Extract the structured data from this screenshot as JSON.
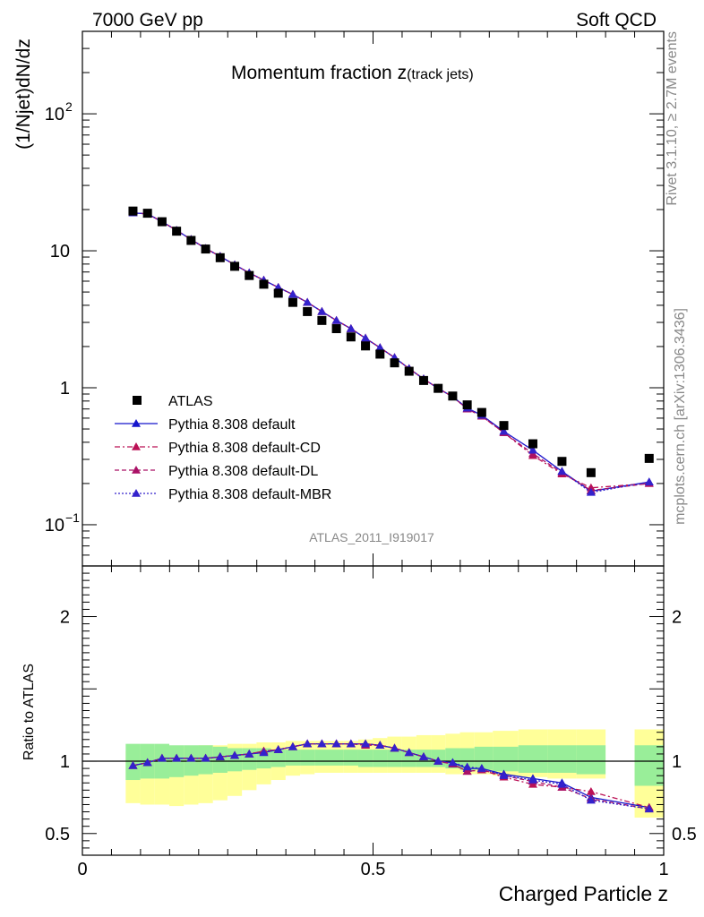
{
  "header": {
    "left": "7000 GeV pp",
    "right": "Soft QCD"
  },
  "side_labels": {
    "rivet": "Rivet 3.1.10, ≥ 2.7M events",
    "mcplots": "mcplots.cern.ch [arXiv:1306.3436]"
  },
  "watermark": "ATLAS_2011_I919017",
  "chart_data": {
    "type": "scatter",
    "title_main": "Momentum fraction z",
    "title_sub": "(track jets)",
    "ylabel": "(1/Njet)dN/dz",
    "ratio_ylabel": "Ratio to ATLAS",
    "xlabel": "Charged Particle z",
    "x_range": [
      0,
      1
    ],
    "y_range_log": [
      0.05,
      400
    ],
    "ratio_range": [
      0.35,
      2.35
    ],
    "x_ticks": [
      {
        "value": 0,
        "label": "0"
      },
      {
        "value": 0.5,
        "label": "0.5"
      },
      {
        "value": 1,
        "label": "1"
      }
    ],
    "y_ticks": [
      {
        "value": 0.1,
        "base": "10",
        "exp": "−1"
      },
      {
        "value": 1,
        "base": "1",
        "exp": ""
      },
      {
        "value": 10,
        "base": "10",
        "exp": ""
      },
      {
        "value": 100,
        "base": "10",
        "exp": "2"
      }
    ],
    "ratio_ticks": [
      {
        "value": 0.5,
        "label": "0.5"
      },
      {
        "value": 1,
        "label": "1"
      },
      {
        "value": 2,
        "label": "2"
      }
    ],
    "x": [
      0.087,
      0.112,
      0.137,
      0.162,
      0.187,
      0.212,
      0.237,
      0.262,
      0.287,
      0.312,
      0.337,
      0.362,
      0.387,
      0.412,
      0.437,
      0.462,
      0.487,
      0.512,
      0.537,
      0.562,
      0.587,
      0.612,
      0.637,
      0.662,
      0.687,
      0.725,
      0.775,
      0.825,
      0.875,
      0.975
    ],
    "data": {
      "name": "ATLAS",
      "values": [
        19.5,
        18.8,
        16.3,
        13.9,
        11.9,
        10.3,
        8.9,
        7.7,
        6.6,
        5.7,
        4.9,
        4.2,
        3.6,
        3.1,
        2.7,
        2.35,
        2.02,
        1.76,
        1.52,
        1.32,
        1.13,
        0.99,
        0.87,
        0.75,
        0.66,
        0.53,
        0.39,
        0.29,
        0.24,
        0.305
      ],
      "band_inner": [
        [
          0.87,
          1.12
        ],
        [
          0.88,
          1.12
        ],
        [
          0.88,
          1.12
        ],
        [
          0.89,
          1.11
        ],
        [
          0.9,
          1.11
        ],
        [
          0.91,
          1.11
        ],
        [
          0.92,
          1.1
        ],
        [
          0.93,
          1.09
        ],
        [
          0.94,
          1.09
        ],
        [
          0.95,
          1.09
        ],
        [
          0.96,
          1.08
        ],
        [
          0.97,
          1.08
        ],
        [
          0.97,
          1.08
        ],
        [
          0.97,
          1.08
        ],
        [
          0.97,
          1.08
        ],
        [
          0.97,
          1.08
        ],
        [
          0.96,
          1.08
        ],
        [
          0.96,
          1.08
        ],
        [
          0.96,
          1.08
        ],
        [
          0.96,
          1.08
        ],
        [
          0.96,
          1.08
        ],
        [
          0.96,
          1.08
        ],
        [
          0.95,
          1.09
        ],
        [
          0.94,
          1.09
        ],
        [
          0.94,
          1.1
        ],
        [
          0.93,
          1.1
        ],
        [
          0.92,
          1.11
        ],
        [
          0.92,
          1.11
        ],
        [
          0.91,
          1.11
        ],
        [
          0.83,
          1.11
        ]
      ],
      "band_outer": [
        [
          0.71,
          1.07
        ],
        [
          0.7,
          1.08
        ],
        [
          0.7,
          1.09
        ],
        [
          0.69,
          1.1
        ],
        [
          0.7,
          1.1
        ],
        [
          0.71,
          1.11
        ],
        [
          0.73,
          1.11
        ],
        [
          0.76,
          1.12
        ],
        [
          0.8,
          1.12
        ],
        [
          0.84,
          1.13
        ],
        [
          0.87,
          1.13
        ],
        [
          0.9,
          1.14
        ],
        [
          0.91,
          1.14
        ],
        [
          0.92,
          1.14
        ],
        [
          0.92,
          1.14
        ],
        [
          0.92,
          1.14
        ],
        [
          0.92,
          1.15
        ],
        [
          0.92,
          1.16
        ],
        [
          0.92,
          1.17
        ],
        [
          0.92,
          1.17
        ],
        [
          0.92,
          1.18
        ],
        [
          0.92,
          1.18
        ],
        [
          0.91,
          1.19
        ],
        [
          0.91,
          1.2
        ],
        [
          0.91,
          1.2
        ],
        [
          0.9,
          1.21
        ],
        [
          0.89,
          1.22
        ],
        [
          0.88,
          1.22
        ],
        [
          0.88,
          1.22
        ],
        [
          0.61,
          1.22
        ]
      ]
    },
    "series": [
      {
        "name": "Pythia 8.308 default",
        "color": "#1515cc",
        "dash": "",
        "values": [
          18.9,
          18.6,
          16.3,
          14.1,
          12.1,
          10.4,
          9.1,
          7.9,
          6.9,
          6.1,
          5.4,
          4.8,
          4.2,
          3.6,
          3.1,
          2.7,
          2.3,
          1.96,
          1.66,
          1.38,
          1.16,
          0.99,
          0.86,
          0.71,
          0.63,
          0.48,
          0.35,
          0.245,
          0.176,
          0.205
        ],
        "ratio": [
          0.97,
          0.99,
          1.02,
          1.02,
          1.02,
          1.02,
          1.03,
          1.04,
          1.05,
          1.06,
          1.08,
          1.1,
          1.12,
          1.12,
          1.12,
          1.12,
          1.12,
          1.11,
          1.09,
          1.06,
          1.03,
          1.0,
          0.99,
          0.95,
          0.95,
          0.91,
          0.88,
          0.85,
          0.75,
          0.68
        ]
      },
      {
        "name": "Pythia 8.308 default-CD",
        "color": "#bb1155",
        "dash": "6,3,2,3",
        "values": [
          18.9,
          18.6,
          16.3,
          14.1,
          12.1,
          10.4,
          9.1,
          7.9,
          6.9,
          6.1,
          5.4,
          4.8,
          4.2,
          3.6,
          3.1,
          2.7,
          2.3,
          1.96,
          1.66,
          1.38,
          1.16,
          0.99,
          0.86,
          0.7,
          0.62,
          0.47,
          0.32,
          0.235,
          0.186,
          0.2
        ],
        "ratio": [
          0.97,
          0.99,
          1.02,
          1.02,
          1.02,
          1.02,
          1.03,
          1.04,
          1.05,
          1.07,
          1.08,
          1.1,
          1.12,
          1.12,
          1.12,
          1.12,
          1.12,
          1.11,
          1.09,
          1.06,
          1.03,
          1.0,
          0.98,
          0.93,
          0.94,
          0.89,
          0.84,
          0.82,
          0.79,
          0.68
        ]
      },
      {
        "name": "Pythia 8.308 default-DL",
        "color": "#aa1166",
        "dash": "5,3",
        "values": [
          18.9,
          18.6,
          16.3,
          14.1,
          12.1,
          10.4,
          9.1,
          7.9,
          6.9,
          6.1,
          5.4,
          4.8,
          4.2,
          3.6,
          3.1,
          2.7,
          2.3,
          1.96,
          1.66,
          1.38,
          1.16,
          0.99,
          0.86,
          0.7,
          0.62,
          0.47,
          0.33,
          0.24,
          0.178,
          0.2
        ],
        "ratio": [
          0.97,
          0.99,
          1.02,
          1.02,
          1.02,
          1.02,
          1.03,
          1.04,
          1.05,
          1.07,
          1.08,
          1.1,
          1.12,
          1.12,
          1.12,
          1.12,
          1.11,
          1.11,
          1.09,
          1.06,
          1.03,
          1.0,
          0.98,
          0.93,
          0.94,
          0.9,
          0.86,
          0.82,
          0.74,
          0.67
        ]
      },
      {
        "name": "Pythia 8.308 default-MBR",
        "color": "#3322cc",
        "dash": "2,2",
        "values": [
          18.9,
          18.6,
          16.3,
          14.1,
          12.1,
          10.4,
          9.1,
          7.9,
          6.9,
          6.1,
          5.4,
          4.8,
          4.2,
          3.6,
          3.1,
          2.7,
          2.3,
          1.96,
          1.66,
          1.38,
          1.16,
          0.99,
          0.86,
          0.71,
          0.63,
          0.48,
          0.35,
          0.245,
          0.172,
          0.205
        ],
        "ratio": [
          0.97,
          0.99,
          1.02,
          1.02,
          1.02,
          1.02,
          1.03,
          1.04,
          1.05,
          1.06,
          1.08,
          1.1,
          1.12,
          1.12,
          1.12,
          1.12,
          1.12,
          1.11,
          1.09,
          1.06,
          1.03,
          1.0,
          0.99,
          0.96,
          0.95,
          0.9,
          0.87,
          0.84,
          0.73,
          0.67
        ]
      }
    ],
    "legend_position": "bottom-left"
  }
}
